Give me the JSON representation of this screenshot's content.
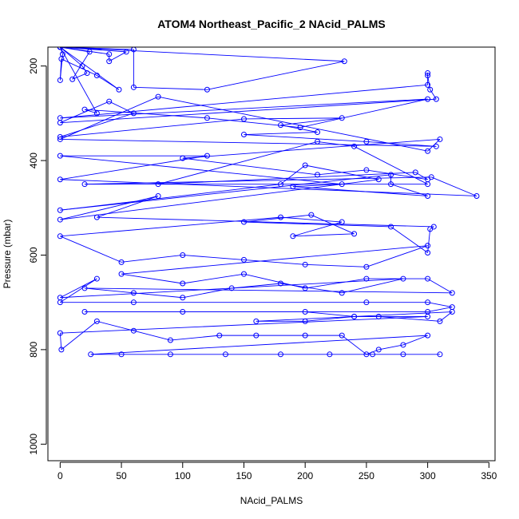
{
  "chart_data": {
    "type": "scatter",
    "title": "ATOM4 Northeast_Pacific_2 NAcid_PALMS",
    "xlabel": "NAcid_PALMS",
    "ylabel": "Pressure (mbar)",
    "xlim": [
      -10,
      355
    ],
    "ylim": [
      1035,
      160
    ],
    "y_inverted": true,
    "x_ticks": [
      0,
      50,
      100,
      150,
      200,
      250,
      300,
      350
    ],
    "x_tick_labels": [
      "0",
      "50",
      "100",
      "150",
      "200",
      "250",
      "300",
      "350"
    ],
    "y_ticks": [
      200,
      400,
      600,
      800,
      1000
    ],
    "y_tick_labels": [
      "200",
      "400",
      "600",
      "800",
      "1000"
    ],
    "grid": false,
    "legend": "none",
    "color": "#0000ff",
    "series": [
      {
        "x": [
          0,
          18,
          22,
          10,
          24,
          0,
          2,
          0,
          1,
          30,
          48,
          0,
          54,
          40,
          40,
          0,
          60,
          60,
          120,
          232,
          0,
          30,
          20,
          120,
          196,
          300,
          0,
          300,
          300,
          300,
          302,
          307,
          0,
          40,
          60,
          0,
          150,
          230,
          180,
          210,
          150,
          250,
          307,
          0,
          80,
          300,
          310,
          100,
          210,
          250,
          300,
          290,
          80,
          210,
          240,
          300,
          20,
          303,
          340,
          0,
          120,
          0,
          230,
          190,
          300,
          270,
          270,
          0,
          180,
          200,
          260,
          0,
          80,
          30,
          305,
          302,
          300,
          270,
          150,
          205,
          240,
          190,
          230,
          180,
          0,
          50,
          100,
          150,
          200,
          250,
          300,
          50,
          100,
          150,
          200,
          250,
          300,
          320,
          20,
          60,
          100,
          140,
          180,
          230,
          280,
          0,
          30,
          0,
          60,
          250,
          300,
          320,
          300,
          20,
          100,
          200,
          240,
          260,
          310,
          320,
          160,
          200,
          240,
          300,
          0,
          1,
          30,
          60,
          90,
          130,
          160,
          200,
          230,
          250,
          260,
          280,
          300,
          25,
          50,
          90,
          135,
          180,
          220,
          255,
          280,
          310
        ],
        "y": [
          160,
          200,
          215,
          228,
          170,
          160,
          175,
          230,
          185,
          220,
          250,
          160,
          170,
          190,
          175,
          160,
          165,
          245,
          250,
          190,
          160,
          300,
          292,
          310,
          330,
          270,
          310,
          240,
          215,
          220,
          250,
          270,
          320,
          275,
          300,
          350,
          312,
          310,
          325,
          340,
          345,
          360,
          370,
          355,
          265,
          380,
          355,
          395,
          430,
          420,
          440,
          425,
          450,
          360,
          370,
          450,
          450,
          435,
          475,
          440,
          390,
          390,
          450,
          455,
          475,
          450,
          430,
          505,
          450,
          410,
          440,
          525,
          475,
          520,
          540,
          545,
          595,
          540,
          530,
          515,
          555,
          560,
          530,
          520,
          560,
          615,
          600,
          610,
          620,
          625,
          580,
          640,
          660,
          640,
          670,
          650,
          650,
          680,
          670,
          680,
          690,
          670,
          660,
          680,
          650,
          690,
          650,
          700,
          700,
          700,
          700,
          710,
          720,
          720,
          720,
          720,
          730,
          730,
          740,
          720,
          740,
          740,
          730,
          730,
          765,
          800,
          740,
          760,
          780,
          770,
          770,
          770,
          770,
          810,
          800,
          790,
          770,
          810,
          810,
          810,
          810,
          810,
          810,
          810,
          810,
          810
        ]
      }
    ]
  }
}
